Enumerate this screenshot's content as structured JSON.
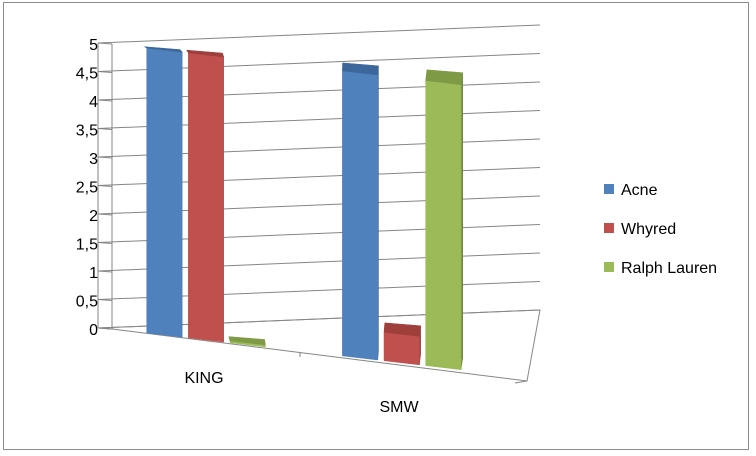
{
  "chart_data": {
    "type": "bar",
    "style": "3d-clustered-column",
    "categories": [
      "KING",
      "SMW"
    ],
    "series": [
      {
        "name": "Acne",
        "values": [
          5,
          5
        ],
        "color": "#4f81bd",
        "color_dark": "#385d8a",
        "color_top": "#3c679b"
      },
      {
        "name": "Whyred",
        "values": [
          5,
          0.5
        ],
        "color": "#c0504d",
        "color_dark": "#8c3836",
        "color_top": "#9e3f3c"
      },
      {
        "name": "Ralph Lauren",
        "values": [
          0,
          5
        ],
        "color": "#9bbb59",
        "color_dark": "#71893f",
        "color_top": "#7e9a45"
      }
    ],
    "yticks": [
      "0",
      "0,5",
      "1",
      "1,5",
      "2",
      "2,5",
      "3",
      "3,5",
      "4",
      "4,5",
      "5"
    ],
    "ylim": [
      0,
      5
    ],
    "grid": true,
    "legend_position": "right",
    "title": "",
    "xlabel": "",
    "ylabel": ""
  }
}
